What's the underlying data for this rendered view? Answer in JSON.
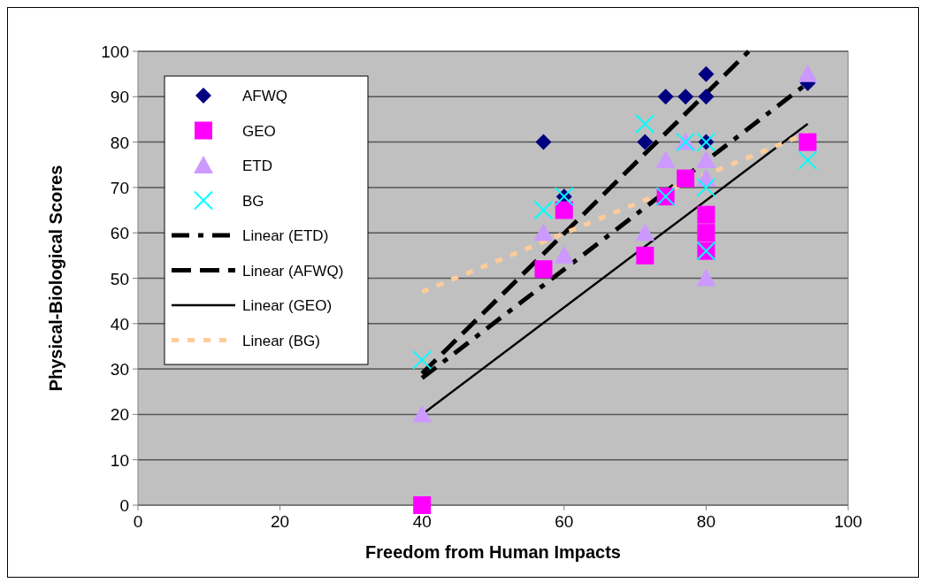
{
  "chart_data": {
    "type": "scatter",
    "xlabel": "Freedom from Human Impacts",
    "ylabel": "Physical-Biological Scores",
    "xlim": [
      0,
      100
    ],
    "ylim": [
      0,
      100
    ],
    "xticks": [
      0,
      20,
      40,
      60,
      80,
      100
    ],
    "yticks": [
      0,
      10,
      20,
      30,
      40,
      50,
      60,
      70,
      80,
      90,
      100
    ],
    "grid": "y",
    "legend": "top left",
    "series": [
      {
        "name": "AFWQ",
        "color": "#000080",
        "marker": "diamond",
        "x": [
          57.1,
          60,
          71.4,
          74.3,
          77.1,
          80,
          80,
          80,
          94.3
        ],
        "values": [
          80,
          68,
          80,
          90,
          90,
          90,
          95,
          80,
          93
        ]
      },
      {
        "name": "GEO",
        "color": "#ff00ff",
        "marker": "square",
        "x": [
          40,
          57.1,
          60,
          71.4,
          74.3,
          77.1,
          80,
          80,
          80,
          94.3
        ],
        "values": [
          0,
          52,
          65,
          55,
          68,
          72,
          64,
          60,
          56,
          80
        ]
      },
      {
        "name": "ETD",
        "color": "#cc99ff",
        "marker": "triangle",
        "x": [
          40,
          57.1,
          60,
          71.4,
          74.3,
          77.1,
          80,
          80,
          80,
          94.3
        ],
        "values": [
          20,
          60,
          55,
          60,
          76,
          80,
          76,
          72,
          50,
          95
        ]
      },
      {
        "name": "BG",
        "color": "#00ffff",
        "marker": "cross",
        "x": [
          40,
          57.1,
          60,
          71.4,
          74.3,
          77.1,
          80,
          80,
          80,
          94.3
        ],
        "values": [
          32,
          65,
          68,
          84,
          68,
          80,
          80,
          70,
          56,
          76
        ]
      },
      {
        "name": "Linear (ETD)",
        "type": "line",
        "color": "#000000",
        "line_style": "dashdot",
        "x": [
          40,
          94.3
        ],
        "values": [
          28,
          93
        ]
      },
      {
        "name": "Linear (AFWQ)",
        "type": "line",
        "color": "#000000",
        "line_style": "dashed",
        "x": [
          40,
          86
        ],
        "values": [
          29,
          100
        ]
      },
      {
        "name": "Linear (GEO)",
        "type": "line",
        "color": "#000000",
        "line_style": "solid",
        "x": [
          40,
          94.3
        ],
        "values": [
          20,
          84
        ]
      },
      {
        "name": "Linear (BG)",
        "type": "line",
        "color": "#ffcc99",
        "line_style": "dotted",
        "x": [
          40,
          94.3
        ],
        "values": [
          47,
          82
        ]
      }
    ]
  }
}
